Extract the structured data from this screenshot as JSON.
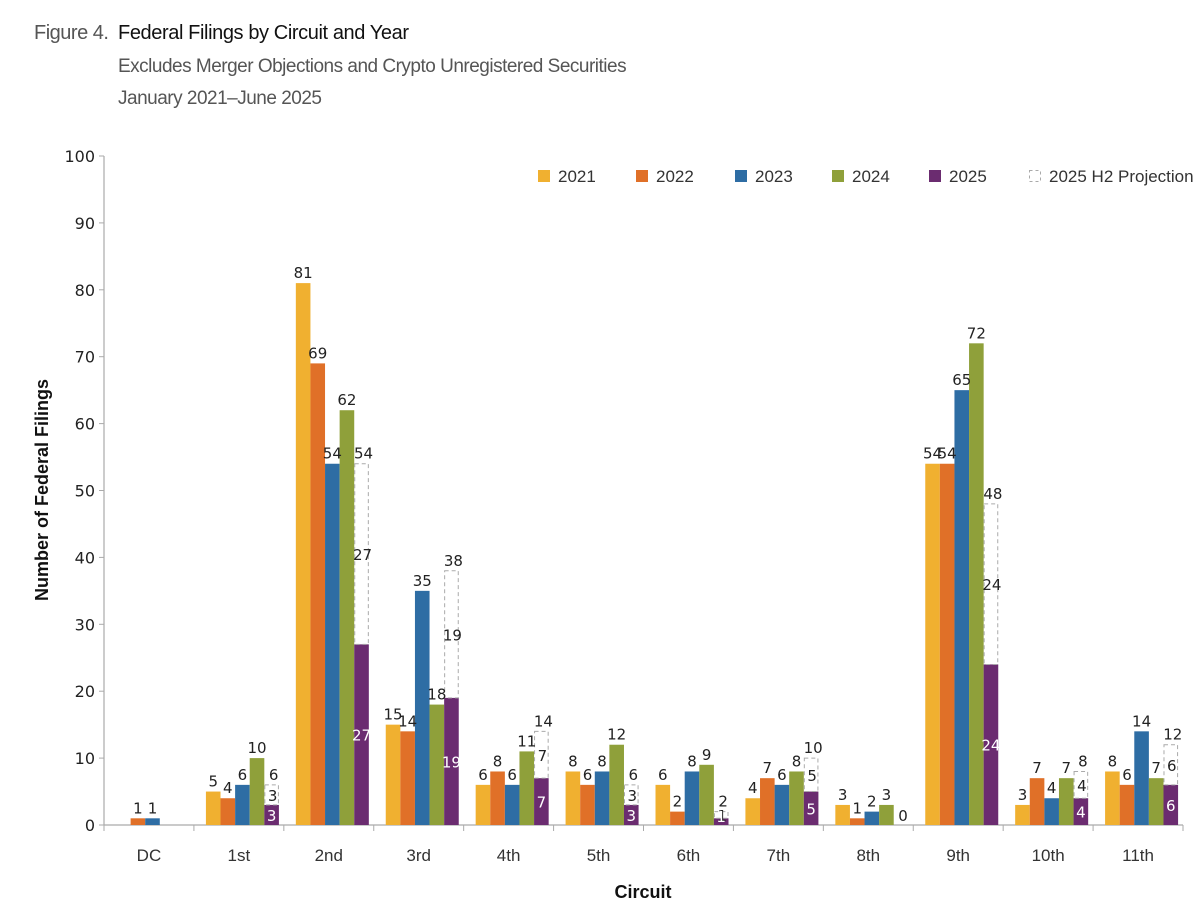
{
  "figure": {
    "number": "Figure 4.",
    "title": "Federal Filings by Circuit and Year",
    "subtitle": "Excludes Merger Objections and Crypto Unregistered Securities",
    "date_range": "January 2021–June 2025"
  },
  "chart_data": {
    "type": "bar",
    "title": "Federal Filings by Circuit and Year",
    "subtitle": "Excludes Merger Objections and Crypto Unregistered Securities",
    "xlabel": "Circuit",
    "ylabel": "Number of Federal Filings",
    "ylim": [
      0,
      100
    ],
    "yticks": [
      0,
      10,
      20,
      30,
      40,
      50,
      60,
      70,
      80,
      90,
      100
    ],
    "grid": false,
    "legend_position": "top-right",
    "categories": [
      "DC",
      "1st",
      "2nd",
      "3rd",
      "4th",
      "5th",
      "6th",
      "7th",
      "8th",
      "9th",
      "10th",
      "11th"
    ],
    "series": [
      {
        "name": "2021",
        "color": "#F0B030",
        "values": [
          0,
          5,
          81,
          15,
          6,
          8,
          6,
          4,
          3,
          54,
          3,
          8
        ]
      },
      {
        "name": "2022",
        "color": "#E07028",
        "values": [
          1,
          4,
          69,
          14,
          8,
          6,
          2,
          7,
          1,
          54,
          7,
          6
        ]
      },
      {
        "name": "2023",
        "color": "#2E6DA4",
        "values": [
          1,
          6,
          54,
          35,
          6,
          8,
          8,
          6,
          2,
          65,
          4,
          14
        ]
      },
      {
        "name": "2024",
        "color": "#8FA03A",
        "values": [
          0,
          10,
          62,
          18,
          11,
          12,
          9,
          8,
          3,
          72,
          7,
          7
        ]
      },
      {
        "name": "2025",
        "color": "#6B2C70",
        "values": [
          0,
          3,
          27,
          19,
          7,
          3,
          1,
          5,
          0,
          24,
          4,
          6
        ]
      }
    ],
    "projection": {
      "name": "2025 H2 Projection",
      "h2_values": [
        0,
        3,
        27,
        19,
        7,
        3,
        1,
        5,
        0,
        24,
        4,
        6
      ],
      "totals": [
        null,
        6,
        54,
        38,
        14,
        6,
        2,
        10,
        null,
        48,
        8,
        12
      ]
    },
    "legend": [
      "2021",
      "2022",
      "2023",
      "2024",
      "2025",
      "2025 H2 Projection"
    ],
    "value_labels_dc": [
      "1",
      "1"
    ],
    "value_label_8th_2025": "0"
  }
}
